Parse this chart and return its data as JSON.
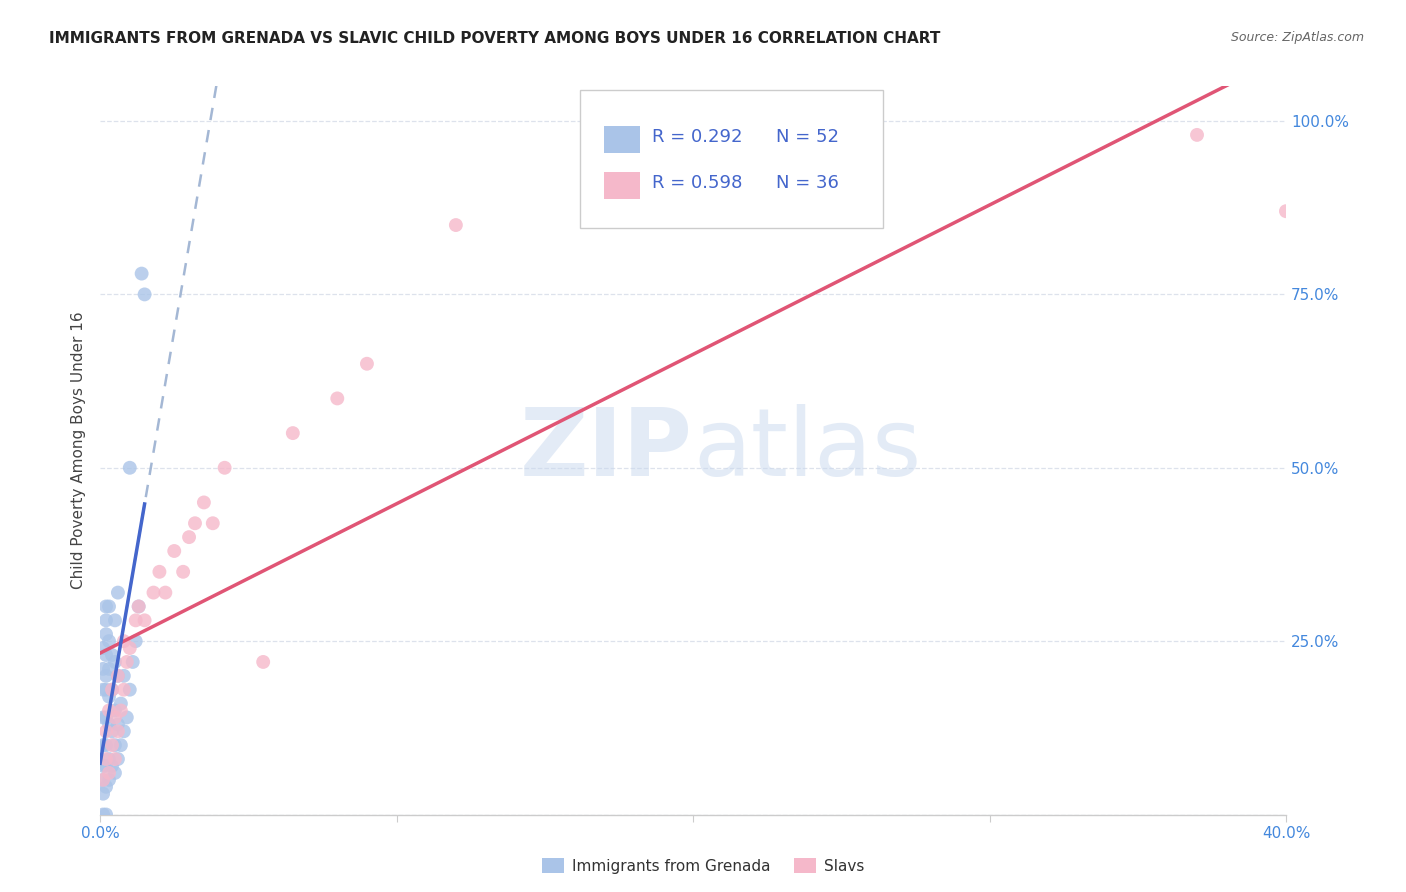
{
  "title": "IMMIGRANTS FROM GRENADA VS SLAVIC CHILD POVERTY AMONG BOYS UNDER 16 CORRELATION CHART",
  "source": "Source: ZipAtlas.com",
  "ylabel": "Child Poverty Among Boys Under 16",
  "xlim": [
    0.0,
    0.4
  ],
  "ylim": [
    0.0,
    1.05
  ],
  "xticks": [
    0.0,
    0.1,
    0.2,
    0.3,
    0.4
  ],
  "xticklabels": [
    "0.0%",
    "",
    "",
    "",
    "40.0%"
  ],
  "yticks": [
    0.0,
    0.25,
    0.5,
    0.75,
    1.0
  ],
  "yticklabels_right": [
    "",
    "25.0%",
    "50.0%",
    "75.0%",
    "100.0%"
  ],
  "legend_r1": "R = 0.292",
  "legend_n1": "N = 52",
  "legend_r2": "R = 0.598",
  "legend_n2": "N = 36",
  "blue_scatter_color": "#aac4e8",
  "pink_scatter_color": "#f5b8ca",
  "blue_line_color": "#4466cc",
  "pink_line_color": "#e05575",
  "dashed_line_color": "#9ab0d0",
  "watermark_color": "#dce6f0",
  "grid_color": "#dde2ec",
  "tick_label_color": "#4488dd",
  "background_color": "#ffffff",
  "grenada_x": [
    0.001,
    0.001,
    0.001,
    0.001,
    0.001,
    0.001,
    0.001,
    0.001,
    0.001,
    0.002,
    0.002,
    0.002,
    0.002,
    0.002,
    0.002,
    0.002,
    0.002,
    0.002,
    0.002,
    0.002,
    0.003,
    0.003,
    0.003,
    0.003,
    0.003,
    0.003,
    0.003,
    0.004,
    0.004,
    0.004,
    0.004,
    0.005,
    0.005,
    0.005,
    0.005,
    0.005,
    0.006,
    0.006,
    0.006,
    0.006,
    0.007,
    0.007,
    0.008,
    0.008,
    0.009,
    0.01,
    0.01,
    0.011,
    0.012,
    0.013,
    0.014,
    0.015
  ],
  "grenada_y": [
    0.0,
    0.03,
    0.05,
    0.07,
    0.1,
    0.14,
    0.18,
    0.21,
    0.24,
    0.0,
    0.04,
    0.07,
    0.1,
    0.14,
    0.18,
    0.2,
    0.23,
    0.26,
    0.28,
    0.3,
    0.05,
    0.08,
    0.13,
    0.17,
    0.21,
    0.25,
    0.3,
    0.07,
    0.12,
    0.18,
    0.23,
    0.06,
    0.1,
    0.15,
    0.22,
    0.28,
    0.08,
    0.13,
    0.2,
    0.32,
    0.1,
    0.16,
    0.12,
    0.2,
    0.14,
    0.18,
    0.5,
    0.22,
    0.25,
    0.3,
    0.78,
    0.75
  ],
  "slavs_x": [
    0.001,
    0.002,
    0.002,
    0.003,
    0.003,
    0.004,
    0.004,
    0.005,
    0.005,
    0.006,
    0.006,
    0.007,
    0.008,
    0.008,
    0.009,
    0.01,
    0.012,
    0.013,
    0.015,
    0.018,
    0.02,
    0.022,
    0.025,
    0.028,
    0.03,
    0.032,
    0.035,
    0.038,
    0.042,
    0.055,
    0.065,
    0.08,
    0.09,
    0.12,
    0.37,
    0.4
  ],
  "slavs_y": [
    0.05,
    0.08,
    0.12,
    0.06,
    0.15,
    0.1,
    0.18,
    0.08,
    0.14,
    0.12,
    0.2,
    0.15,
    0.18,
    0.25,
    0.22,
    0.24,
    0.28,
    0.3,
    0.28,
    0.32,
    0.35,
    0.32,
    0.38,
    0.35,
    0.4,
    0.42,
    0.45,
    0.42,
    0.5,
    0.22,
    0.55,
    0.6,
    0.65,
    0.85,
    0.98,
    0.87
  ]
}
